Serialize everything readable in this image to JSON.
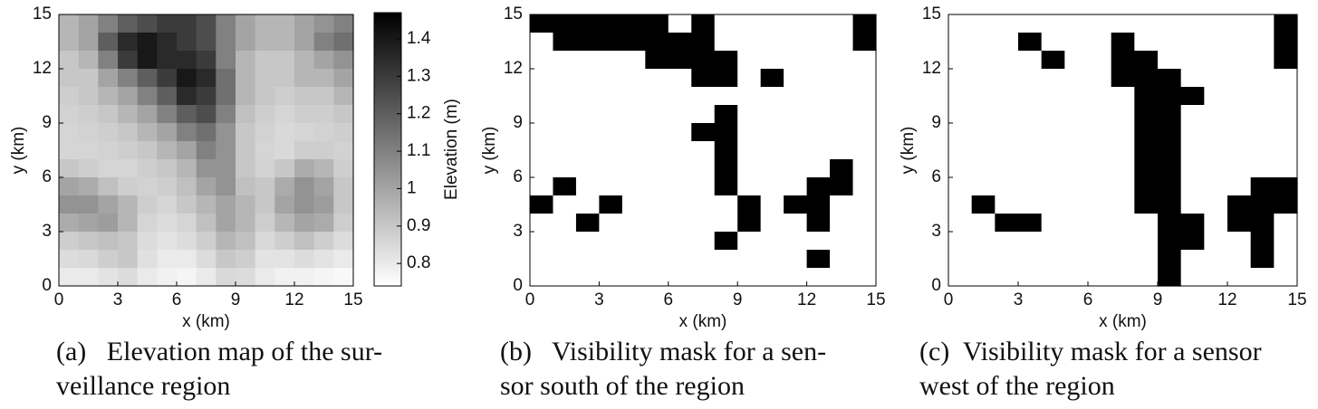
{
  "chart_data": [
    {
      "type": "heatmap",
      "caption": [
        "(a)   Elevation map of the sur-",
        "veillance region"
      ],
      "x_label": "x (km)",
      "y_label": "y (km)",
      "colorbar_label": "Elevation (m)",
      "colormap": "gray_reversed",
      "xlim": [
        0,
        15
      ],
      "ylim": [
        0,
        15
      ],
      "xticks": [
        0,
        3,
        6,
        9,
        12,
        15
      ],
      "yticks": [
        0,
        3,
        6,
        9,
        12,
        15
      ],
      "zlim": [
        0.74,
        1.47
      ],
      "zticks": [
        0.8,
        0.9,
        1,
        1.1,
        1.2,
        1.3,
        1.4
      ],
      "colorbar": true,
      "z": [
        [
          0.95,
          1.0,
          1.1,
          1.2,
          1.25,
          1.3,
          1.3,
          1.25,
          1.1,
          1.0,
          0.95,
          0.95,
          1.0,
          1.05,
          1.1
        ],
        [
          0.95,
          1.0,
          1.2,
          1.35,
          1.4,
          1.35,
          1.3,
          1.25,
          1.1,
          1.0,
          0.95,
          0.95,
          1.0,
          1.1,
          1.15
        ],
        [
          0.9,
          0.95,
          1.1,
          1.3,
          1.4,
          1.35,
          1.35,
          1.3,
          1.1,
          0.95,
          0.9,
          0.9,
          0.95,
          1.0,
          1.05
        ],
        [
          0.9,
          0.9,
          1.0,
          1.1,
          1.2,
          1.3,
          1.4,
          1.35,
          1.15,
          0.95,
          0.9,
          0.9,
          0.95,
          0.95,
          1.0
        ],
        [
          0.88,
          0.9,
          0.95,
          1.0,
          1.1,
          1.2,
          1.35,
          1.3,
          1.15,
          0.95,
          0.9,
          0.88,
          0.9,
          0.9,
          0.95
        ],
        [
          0.87,
          0.88,
          0.9,
          0.95,
          1.0,
          1.1,
          1.2,
          1.25,
          1.1,
          0.92,
          0.88,
          0.86,
          0.88,
          0.88,
          0.9
        ],
        [
          0.86,
          0.87,
          0.88,
          0.9,
          0.95,
          1.0,
          1.1,
          1.15,
          1.05,
          0.9,
          0.87,
          0.85,
          0.86,
          0.87,
          0.88
        ],
        [
          0.86,
          0.86,
          0.87,
          0.88,
          0.9,
          0.95,
          1.0,
          1.1,
          1.05,
          0.9,
          0.86,
          0.85,
          0.88,
          0.88,
          0.87
        ],
        [
          0.9,
          0.88,
          0.86,
          0.86,
          0.88,
          0.9,
          0.95,
          1.05,
          1.05,
          0.9,
          0.87,
          0.9,
          0.98,
          0.95,
          0.88
        ],
        [
          1.0,
          0.98,
          0.92,
          0.88,
          0.87,
          0.88,
          0.92,
          1.0,
          1.05,
          0.92,
          0.9,
          0.98,
          1.05,
          1.0,
          0.9
        ],
        [
          1.05,
          1.05,
          1.0,
          0.95,
          0.88,
          0.86,
          0.9,
          0.95,
          1.0,
          0.95,
          0.9,
          1.0,
          1.05,
          1.02,
          0.9
        ],
        [
          0.98,
          1.0,
          1.02,
          0.95,
          0.86,
          0.84,
          0.86,
          0.92,
          1.0,
          0.95,
          0.88,
          0.95,
          1.0,
          0.98,
          0.88
        ],
        [
          0.88,
          0.9,
          0.92,
          0.9,
          0.84,
          0.82,
          0.84,
          0.88,
          0.95,
          0.92,
          0.85,
          0.88,
          0.92,
          0.88,
          0.84
        ],
        [
          0.84,
          0.85,
          0.88,
          0.9,
          0.83,
          0.8,
          0.8,
          0.84,
          0.9,
          0.88,
          0.82,
          0.82,
          0.84,
          0.82,
          0.8
        ],
        [
          0.8,
          0.8,
          0.82,
          0.84,
          0.8,
          0.78,
          0.77,
          0.8,
          0.85,
          0.84,
          0.8,
          0.78,
          0.78,
          0.77,
          0.76
        ]
      ]
    },
    {
      "type": "heatmap",
      "caption": [
        "(b)   Visibility mask for a sen-",
        "sor south of the region"
      ],
      "x_label": "x (km)",
      "y_label": "y (km)",
      "colormap": "gray_reversed",
      "colorbar": false,
      "xlim": [
        0,
        15
      ],
      "ylim": [
        0,
        15
      ],
      "xticks": [
        0,
        3,
        6,
        9,
        12,
        15
      ],
      "yticks": [
        0,
        3,
        6,
        9,
        12,
        15
      ],
      "zlim": [
        0,
        1
      ],
      "z": [
        [
          1,
          1,
          1,
          1,
          1,
          1,
          0,
          1,
          0,
          0,
          0,
          0,
          0,
          0,
          1
        ],
        [
          0,
          1,
          1,
          1,
          1,
          1,
          1,
          1,
          0,
          0,
          0,
          0,
          0,
          0,
          1
        ],
        [
          0,
          0,
          0,
          0,
          0,
          1,
          1,
          1,
          1,
          0,
          0,
          0,
          0,
          0,
          0
        ],
        [
          0,
          0,
          0,
          0,
          0,
          0,
          0,
          1,
          1,
          0,
          1,
          0,
          0,
          0,
          0
        ],
        [
          0,
          0,
          0,
          0,
          0,
          0,
          0,
          0,
          0,
          0,
          0,
          0,
          0,
          0,
          0
        ],
        [
          0,
          0,
          0,
          0,
          0,
          0,
          0,
          0,
          1,
          0,
          0,
          0,
          0,
          0,
          0
        ],
        [
          0,
          0,
          0,
          0,
          0,
          0,
          0,
          1,
          1,
          0,
          0,
          0,
          0,
          0,
          0
        ],
        [
          0,
          0,
          0,
          0,
          0,
          0,
          0,
          0,
          1,
          0,
          0,
          0,
          0,
          0,
          0
        ],
        [
          0,
          0,
          0,
          0,
          0,
          0,
          0,
          0,
          1,
          0,
          0,
          0,
          0,
          1,
          0
        ],
        [
          0,
          1,
          0,
          0,
          0,
          0,
          0,
          0,
          1,
          0,
          0,
          0,
          1,
          1,
          0
        ],
        [
          1,
          0,
          0,
          1,
          0,
          0,
          0,
          0,
          0,
          1,
          0,
          1,
          1,
          0,
          0
        ],
        [
          0,
          0,
          1,
          0,
          0,
          0,
          0,
          0,
          0,
          1,
          0,
          0,
          1,
          0,
          0
        ],
        [
          0,
          0,
          0,
          0,
          0,
          0,
          0,
          0,
          1,
          0,
          0,
          0,
          0,
          0,
          0
        ],
        [
          0,
          0,
          0,
          0,
          0,
          0,
          0,
          0,
          0,
          0,
          0,
          0,
          1,
          0,
          0
        ],
        [
          0,
          0,
          0,
          0,
          0,
          0,
          0,
          0,
          0,
          0,
          0,
          0,
          0,
          0,
          0
        ]
      ]
    },
    {
      "type": "heatmap",
      "caption": [
        "(c)  Visibility mask for a sensor",
        "west of the region"
      ],
      "x_label": "x (km)",
      "y_label": "y (km)",
      "colormap": "gray_reversed",
      "colorbar": false,
      "xlim": [
        0,
        15
      ],
      "ylim": [
        0,
        15
      ],
      "xticks": [
        0,
        3,
        6,
        9,
        12,
        15
      ],
      "yticks": [
        0,
        3,
        6,
        9,
        12,
        15
      ],
      "zlim": [
        0,
        1
      ],
      "z": [
        [
          0,
          0,
          0,
          0,
          0,
          0,
          0,
          0,
          0,
          0,
          0,
          0,
          0,
          0,
          1
        ],
        [
          0,
          0,
          0,
          1,
          0,
          0,
          0,
          1,
          0,
          0,
          0,
          0,
          0,
          0,
          1
        ],
        [
          0,
          0,
          0,
          0,
          1,
          0,
          0,
          1,
          1,
          0,
          0,
          0,
          0,
          0,
          1
        ],
        [
          0,
          0,
          0,
          0,
          0,
          0,
          0,
          1,
          1,
          1,
          0,
          0,
          0,
          0,
          0
        ],
        [
          0,
          0,
          0,
          0,
          0,
          0,
          0,
          0,
          1,
          1,
          1,
          0,
          0,
          0,
          0
        ],
        [
          0,
          0,
          0,
          0,
          0,
          0,
          0,
          0,
          1,
          1,
          0,
          0,
          0,
          0,
          0
        ],
        [
          0,
          0,
          0,
          0,
          0,
          0,
          0,
          0,
          1,
          1,
          0,
          0,
          0,
          0,
          0
        ],
        [
          0,
          0,
          0,
          0,
          0,
          0,
          0,
          0,
          1,
          1,
          0,
          0,
          0,
          0,
          0
        ],
        [
          0,
          0,
          0,
          0,
          0,
          0,
          0,
          0,
          1,
          1,
          0,
          0,
          0,
          0,
          0
        ],
        [
          0,
          0,
          0,
          0,
          0,
          0,
          0,
          0,
          1,
          1,
          0,
          0,
          0,
          1,
          1
        ],
        [
          0,
          1,
          0,
          0,
          0,
          0,
          0,
          0,
          1,
          1,
          0,
          0,
          1,
          1,
          1
        ],
        [
          0,
          0,
          1,
          1,
          0,
          0,
          0,
          0,
          0,
          1,
          1,
          0,
          1,
          1,
          0
        ],
        [
          0,
          0,
          0,
          0,
          0,
          0,
          0,
          0,
          0,
          1,
          1,
          0,
          0,
          1,
          0
        ],
        [
          0,
          0,
          0,
          0,
          0,
          0,
          0,
          0,
          0,
          1,
          0,
          0,
          0,
          1,
          0
        ],
        [
          0,
          0,
          0,
          0,
          0,
          0,
          0,
          0,
          0,
          1,
          0,
          0,
          0,
          0,
          0
        ]
      ]
    }
  ]
}
